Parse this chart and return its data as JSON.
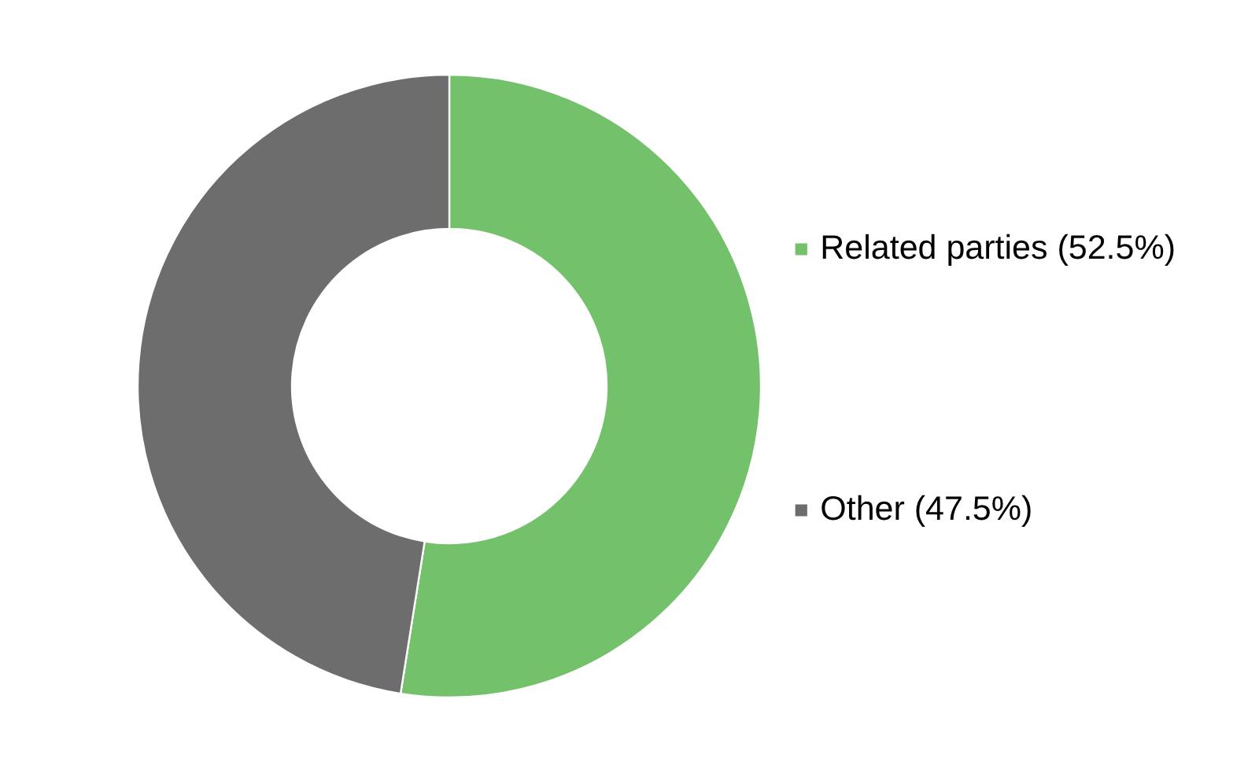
{
  "chart_data": {
    "type": "donut",
    "categories": [
      "Related parties (52.5%)",
      "Other (47.5%)"
    ],
    "values": [
      52.5,
      47.5
    ],
    "colors": [
      "#73c16b",
      "#6d6d6d"
    ],
    "legend": "right"
  }
}
